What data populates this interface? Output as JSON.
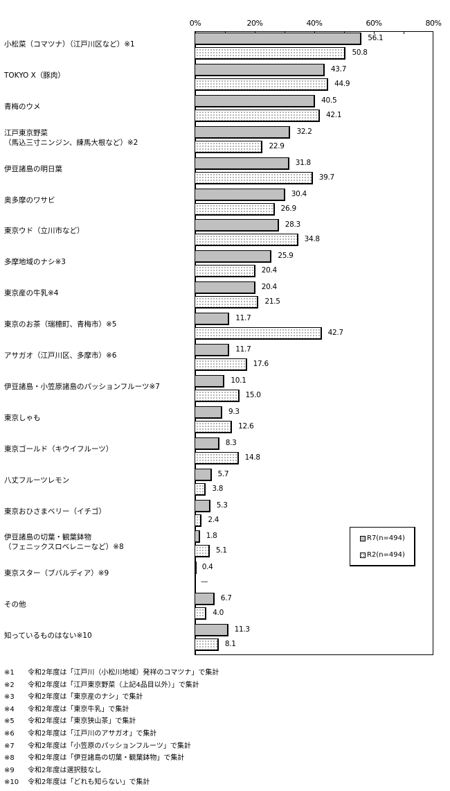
{
  "chart_data": {
    "type": "bar",
    "orientation": "horizontal",
    "title": "",
    "xlabel": "",
    "ylabel": "",
    "xlim": [
      0,
      80
    ],
    "x_ticks": [
      "0%",
      "20%",
      "40%",
      "60%",
      "80%"
    ],
    "grid": false,
    "legend_position": "lower-right inside plot",
    "categories": [
      "小松菜（コマツナ）（江戸川区など）※1",
      "TOKYO X（豚肉）",
      "青梅のウメ",
      "江戸東京野菜\n（馬込三寸ニンジン、練馬大根など）※2",
      "伊豆諸島の明日葉",
      "奥多摩のワサビ",
      "東京ウド（立川市など）",
      "多摩地域のナシ※3",
      "東京産の牛乳※4",
      "東京のお茶（瑞穂町、青梅市）※5",
      "アサガオ（江戸川区、多摩市）※6",
      "伊豆諸島・小笠原諸島のパッションフルーツ※7",
      "東京しゃも",
      "東京ゴールド（キウイフルーツ）",
      "八丈フルーツレモン",
      "東京おひさまベリー（イチゴ）",
      "伊豆諸島の切葉・観葉鉢物\n（フェニックスロベレニーなど）※8",
      "東京スター（ブバルディア）※9",
      "その他",
      "知っているものはない※10"
    ],
    "series": [
      {
        "name": "R7(n=494)",
        "color": "#c0c0c0",
        "pattern": "solid",
        "values": [
          56.1,
          43.7,
          40.5,
          32.2,
          31.8,
          30.4,
          28.3,
          25.9,
          20.4,
          11.7,
          11.7,
          10.1,
          9.3,
          8.3,
          5.7,
          5.3,
          1.8,
          0.4,
          6.7,
          11.3
        ]
      },
      {
        "name": "R2(n=494)",
        "color": "#ffffff",
        "pattern": "dotted",
        "values": [
          50.8,
          44.9,
          42.1,
          22.9,
          39.7,
          26.9,
          34.8,
          20.4,
          21.5,
          42.7,
          17.6,
          15.0,
          12.6,
          14.8,
          3.8,
          2.4,
          5.1,
          null,
          4.0,
          8.1
        ]
      }
    ],
    "value_labels": {
      "r7": [
        "56.1",
        "43.7",
        "40.5",
        "32.2",
        "31.8",
        "30.4",
        "28.3",
        "25.9",
        "20.4",
        "11.7",
        "11.7",
        "10.1",
        "9.3",
        "8.3",
        "5.7",
        "5.3",
        "1.8",
        "0.4",
        "6.7",
        "11.3"
      ],
      "r2": [
        "50.8",
        "44.9",
        "42.1",
        "22.9",
        "39.7",
        "26.9",
        "34.8",
        "20.4",
        "21.5",
        "42.7",
        "17.6",
        "15.0",
        "12.6",
        "14.8",
        "3.8",
        "2.4",
        "5.1",
        "—",
        "4.0",
        "8.1"
      ]
    }
  },
  "legend": {
    "r7": "R7(n=494)",
    "r2": "R2(n=494)"
  },
  "footnotes": [
    {
      "mark": "※1",
      "text": "令和2年度は「江戸川（小松川地域）発祥のコマツナ」で集計"
    },
    {
      "mark": "※2",
      "text": "令和2年度は「江戸東京野菜（上記4品目以外）」で集計"
    },
    {
      "mark": "※3",
      "text": "令和2年度は「東京産のナシ」で集計"
    },
    {
      "mark": "※4",
      "text": "令和2年度は「東京牛乳」で集計"
    },
    {
      "mark": "※5",
      "text": "令和2年度は「東京狭山茶」で集計"
    },
    {
      "mark": "※6",
      "text": "令和2年度は「江戸川のアサガオ」で集計"
    },
    {
      "mark": "※7",
      "text": "令和2年度は「小笠原のパッションフルーツ」で集計"
    },
    {
      "mark": "※8",
      "text": "令和2年度は「伊豆諸島の切葉・観葉鉢物」で集計"
    },
    {
      "mark": "※9",
      "text": "令和2年度は選択肢なし"
    },
    {
      "mark": "※10",
      "text": "令和2年度は「どれも知らない」で集計"
    }
  ]
}
